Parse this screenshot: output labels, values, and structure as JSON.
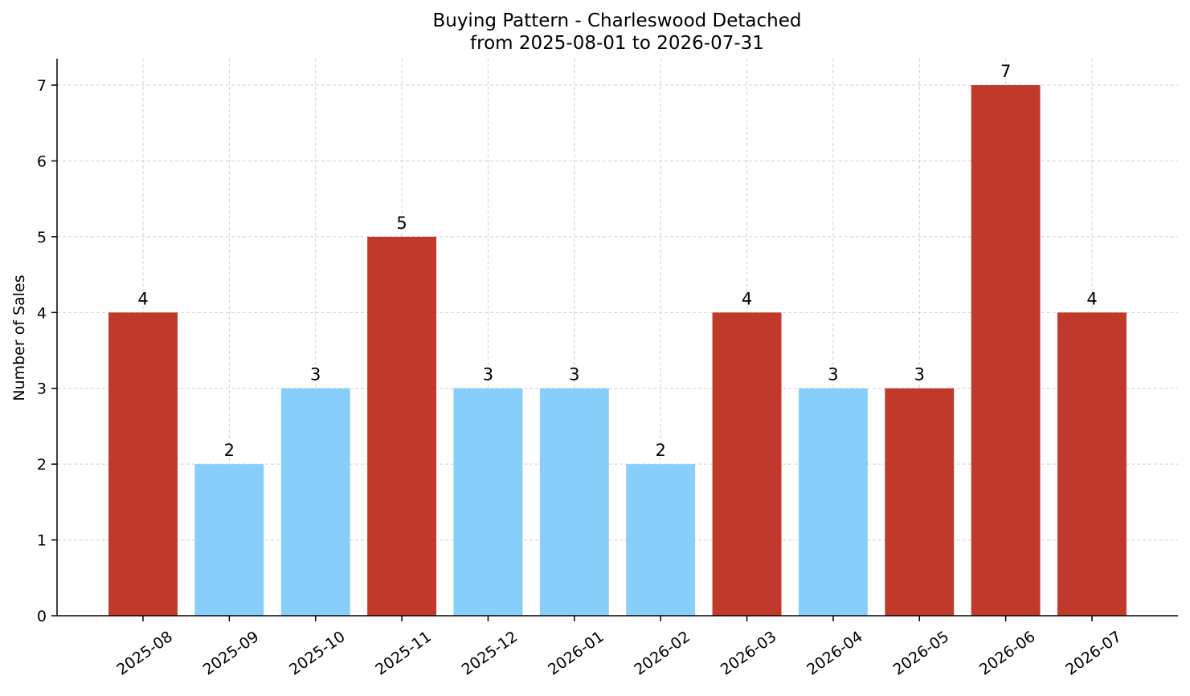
{
  "chart_data": {
    "type": "bar",
    "title": "Buying Pattern - Charleswood Detached",
    "subtitle": "from 2025-08-01 to 2026-07-31",
    "xlabel": "",
    "ylabel": "Number of Sales",
    "categories": [
      "2025-08",
      "2025-09",
      "2025-10",
      "2025-11",
      "2025-12",
      "2026-01",
      "2026-02",
      "2026-03",
      "2026-04",
      "2026-05",
      "2026-06",
      "2026-07"
    ],
    "values": [
      4,
      2,
      3,
      5,
      3,
      3,
      2,
      4,
      3,
      3,
      7,
      4
    ],
    "bar_colors": [
      "#c0392b",
      "#87cefa",
      "#87cefa",
      "#c0392b",
      "#87cefa",
      "#87cefa",
      "#87cefa",
      "#c0392b",
      "#87cefa",
      "#c0392b",
      "#c0392b",
      "#c0392b"
    ],
    "data_labels": true,
    "ylim": [
      0,
      7.35
    ],
    "yticks": [
      0,
      1,
      2,
      3,
      4,
      5,
      6,
      7
    ],
    "grid": true,
    "legend": "none"
  }
}
